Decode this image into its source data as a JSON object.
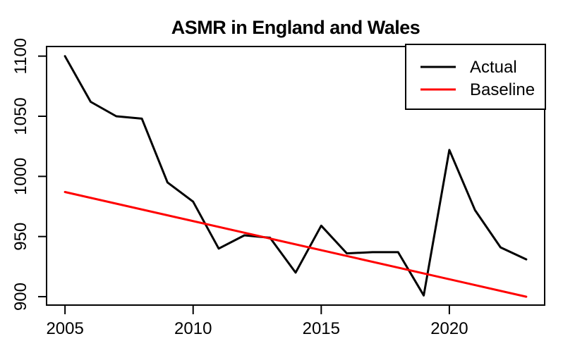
{
  "figure": {
    "title": "ASMR in England and Wales"
  },
  "chart_data": {
    "type": "line",
    "title": "ASMR in England and Wales",
    "xlabel": "",
    "ylabel": "",
    "grid": false,
    "x": [
      2005,
      2006,
      2007,
      2008,
      2009,
      2010,
      2011,
      2012,
      2013,
      2014,
      2015,
      2016,
      2017,
      2018,
      2019,
      2020,
      2021,
      2022,
      2023
    ],
    "series": [
      {
        "name": "Actual",
        "color": "#000000",
        "x": [
          2005,
          2006,
          2007,
          2008,
          2009,
          2010,
          2011,
          2012,
          2013,
          2014,
          2015,
          2016,
          2017,
          2018,
          2019,
          2020,
          2021,
          2022,
          2023
        ],
        "values": [
          1100,
          1062,
          1050,
          1048,
          995,
          979,
          940,
          951,
          949,
          920,
          959,
          936,
          937,
          937,
          901,
          1022,
          972,
          941,
          931
        ]
      },
      {
        "name": "Baseline",
        "color": "#FF0000",
        "x": [
          2005,
          2023
        ],
        "values": [
          987,
          900
        ]
      }
    ],
    "xticks": [
      2005,
      2010,
      2015,
      2020
    ],
    "yticks": [
      900,
      950,
      1000,
      1050,
      1100
    ],
    "xlim": [
      2004.28,
      2023.72
    ],
    "ylim": [
      893,
      1108
    ],
    "legend": {
      "position": "topright",
      "entries": [
        "Actual",
        "Baseline"
      ]
    }
  }
}
